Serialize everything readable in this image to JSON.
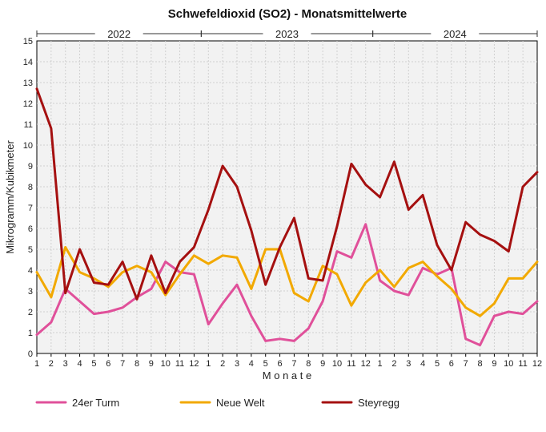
{
  "chart_data": {
    "type": "line",
    "title": "Schwefeldioxid (SO2) - Monatsmittelwerte",
    "xlabel": "M o n a t e",
    "ylabel": "Mikrogramm/Kubikmeter",
    "ylim": [
      0,
      15
    ],
    "yticks": [
      "0",
      "1",
      "2",
      "3",
      "4",
      "5",
      "6",
      "7",
      "8",
      "9",
      "10",
      "11",
      "12",
      "13",
      "14",
      "15"
    ],
    "x": [
      "1",
      "2",
      "3",
      "4",
      "5",
      "6",
      "7",
      "8",
      "9",
      "10",
      "11",
      "12",
      "1",
      "2",
      "3",
      "4",
      "5",
      "6",
      "7",
      "8",
      "9",
      "10",
      "11",
      "12",
      "1",
      "2",
      "3",
      "4",
      "5",
      "6",
      "7",
      "8",
      "9",
      "10",
      "11",
      "12"
    ],
    "years": [
      {
        "label": "2022",
        "start": 0,
        "end": 12
      },
      {
        "label": "2023",
        "start": 12,
        "end": 24
      },
      {
        "label": "2024",
        "start": 24,
        "end": 36
      }
    ],
    "grid": true,
    "legend_position": "bottom",
    "series": [
      {
        "name": "24er Turm",
        "color": "#e0509a",
        "values": [
          0.9,
          1.5,
          3.1,
          2.5,
          1.9,
          2.0,
          2.2,
          2.7,
          3.1,
          4.4,
          3.9,
          3.8,
          1.4,
          2.4,
          3.3,
          1.8,
          0.6,
          0.7,
          0.6,
          1.2,
          2.5,
          4.9,
          4.6,
          6.2,
          3.5,
          3.0,
          2.8,
          4.1,
          3.8,
          4.1,
          0.7,
          0.4,
          1.8,
          2.0,
          1.9,
          2.5
        ]
      },
      {
        "name": "Neue Welt",
        "color": "#f2a900",
        "values": [
          3.9,
          2.7,
          5.1,
          3.9,
          3.6,
          3.2,
          3.9,
          4.2,
          3.9,
          2.8,
          3.8,
          4.7,
          4.3,
          4.7,
          4.6,
          3.1,
          5.0,
          5.0,
          2.9,
          2.5,
          4.2,
          3.8,
          2.3,
          3.4,
          4.0,
          3.2,
          4.1,
          4.4,
          3.7,
          3.1,
          2.2,
          1.8,
          2.4,
          3.6,
          3.6,
          4.4
        ]
      },
      {
        "name": "Steyregg",
        "color": "#a51010",
        "values": [
          12.7,
          10.8,
          2.9,
          5.0,
          3.4,
          3.3,
          4.4,
          2.6,
          4.7,
          2.9,
          4.4,
          5.1,
          6.9,
          9.0,
          8.0,
          5.9,
          3.3,
          5.1,
          6.5,
          3.6,
          3.5,
          6.1,
          9.1,
          8.1,
          7.5,
          9.2,
          6.9,
          7.6,
          5.2,
          4.0,
          6.3,
          5.7,
          5.4,
          4.9,
          8.0,
          8.7
        ]
      }
    ]
  }
}
